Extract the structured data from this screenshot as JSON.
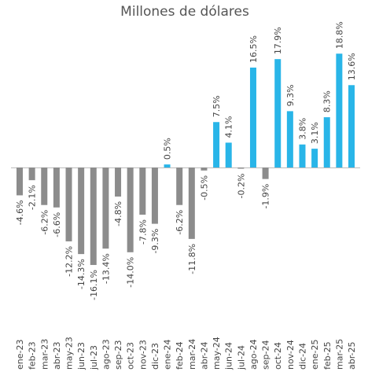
{
  "chart_data": {
    "type": "bar",
    "title": "Millones de dólares",
    "categories": [
      "ene-23",
      "feb-23",
      "mar-23",
      "abr-23",
      "may-23",
      "jun-23",
      "jul-23",
      "ago-23",
      "sep-23",
      "oct-23",
      "nov-23",
      "dic-23",
      "ene-24",
      "feb-24",
      "mar-24",
      "abr-24",
      "may-24",
      "jun-24",
      "jul-24",
      "ago-24",
      "sep-24",
      "oct-24",
      "nov-24",
      "dic-24",
      "ene-25",
      "feb-25",
      "mar-25",
      "abr-25"
    ],
    "values": [
      -4.6,
      -2.1,
      -6.2,
      -6.6,
      -12.2,
      -14.3,
      -16.1,
      -13.4,
      -4.8,
      -14.0,
      -7.8,
      -9.3,
      0.5,
      -6.2,
      -11.8,
      -0.5,
      7.5,
      4.1,
      -0.2,
      16.5,
      -1.9,
      17.9,
      9.3,
      3.8,
      3.1,
      8.3,
      18.8,
      13.6
    ],
    "value_labels": [
      "-4.6%",
      "-2.1%",
      "-6.2%",
      "-6.6%",
      "-12.2%",
      "-14.3%",
      "-16.1%",
      "-13.4%",
      "-4.8%",
      "-14.0%",
      "-7.8%",
      "-9.3%",
      "0.5%",
      "-6.2%",
      "-11.8%",
      "-0.5%",
      "7.5%",
      "4.1%",
      "-0.2%",
      "16.5%",
      "-1.9%",
      "17.9%",
      "9.3%",
      "3.8%",
      "3.1%",
      "8.3%",
      "18.8%",
      "13.6%"
    ],
    "positive_color": "#29b5e8",
    "negative_color": "#8c8c8c"
  }
}
